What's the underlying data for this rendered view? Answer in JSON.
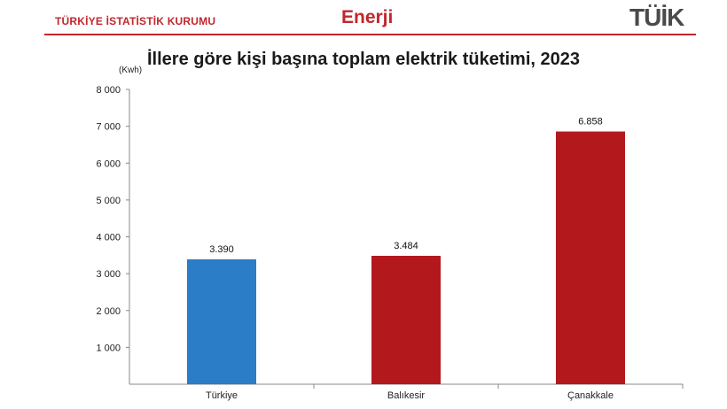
{
  "header": {
    "org": "TÜRKİYE İSTATİSTİK KURUMU",
    "section": "Enerji",
    "logo": "TÜİK"
  },
  "colors": {
    "accent": "#c0272d",
    "turkiye_bar": "#2a7dc6",
    "province_bar": "#b3191c"
  },
  "chart_data": {
    "type": "bar",
    "title": "İllere göre kişi başına toplam elektrik tüketimi, 2023",
    "unit": "(Kwh)",
    "categories": [
      "Türkiye",
      "Balıkesir",
      "Çanakkale"
    ],
    "values": [
      3390,
      3484,
      6858
    ],
    "data_labels": [
      "3.390",
      "3.484",
      "6.858"
    ],
    "bar_colors": [
      "#2a7dc6",
      "#b3191c",
      "#b3191c"
    ],
    "yticks": [
      1000,
      2000,
      3000,
      4000,
      5000,
      6000,
      7000,
      8000
    ],
    "ytick_labels": [
      "1 000",
      "2 000",
      "3 000",
      "4 000",
      "5 000",
      "6 000",
      "7 000",
      "8 000"
    ],
    "ylim": [
      0,
      8000
    ],
    "grid": false,
    "legend": "none"
  }
}
